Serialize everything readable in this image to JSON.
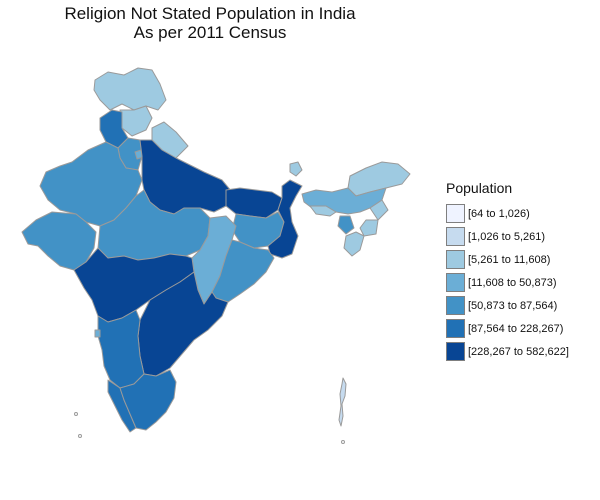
{
  "title": {
    "line1": "Religion Not Stated Population in India",
    "line2": "As per 2011 Census"
  },
  "legend": {
    "title": "Population",
    "items": [
      {
        "label": "[64 to 1,026)",
        "color": "#eff3ff"
      },
      {
        "label": "[1,026 to 5,261)",
        "color": "#c6dbef"
      },
      {
        "label": "[5,261 to 11,608)",
        "color": "#9ecae1"
      },
      {
        "label": "[11,608 to 50,873)",
        "color": "#6baed6"
      },
      {
        "label": "[50,873 to 87,564)",
        "color": "#4292c6"
      },
      {
        "label": "[87,564 to 228,267)",
        "color": "#2171b5"
      },
      {
        "label": "[228,267 to 582,622]",
        "color": "#084594"
      }
    ]
  },
  "map": {
    "border_color": "#9a9a9a",
    "regions": [
      {
        "id": "jammu-kashmir",
        "bin": 2
      },
      {
        "id": "himachal-pradesh",
        "bin": 2
      },
      {
        "id": "punjab",
        "bin": 5
      },
      {
        "id": "uttarakhand",
        "bin": 2
      },
      {
        "id": "haryana",
        "bin": 4
      },
      {
        "id": "delhi",
        "bin": 3
      },
      {
        "id": "rajasthan",
        "bin": 4
      },
      {
        "id": "uttar-pradesh",
        "bin": 6
      },
      {
        "id": "bihar",
        "bin": 6
      },
      {
        "id": "gujarat",
        "bin": 4
      },
      {
        "id": "madhya-pradesh",
        "bin": 4
      },
      {
        "id": "jharkhand",
        "bin": 4
      },
      {
        "id": "west-bengal",
        "bin": 6
      },
      {
        "id": "chhattisgarh",
        "bin": 3
      },
      {
        "id": "odisha",
        "bin": 4
      },
      {
        "id": "maharashtra",
        "bin": 6
      },
      {
        "id": "telangana-andhra",
        "bin": 6
      },
      {
        "id": "karnataka",
        "bin": 5
      },
      {
        "id": "goa",
        "bin": 3
      },
      {
        "id": "kerala",
        "bin": 5
      },
      {
        "id": "tamil-nadu",
        "bin": 5
      },
      {
        "id": "sikkim",
        "bin": 2
      },
      {
        "id": "arunachal-pradesh",
        "bin": 2
      },
      {
        "id": "assam",
        "bin": 3
      },
      {
        "id": "meghalaya",
        "bin": 2
      },
      {
        "id": "nagaland",
        "bin": 2
      },
      {
        "id": "manipur",
        "bin": 2
      },
      {
        "id": "tripura",
        "bin": 4
      },
      {
        "id": "mizoram",
        "bin": 2
      },
      {
        "id": "andaman-nicobar",
        "bin": 1
      }
    ]
  }
}
